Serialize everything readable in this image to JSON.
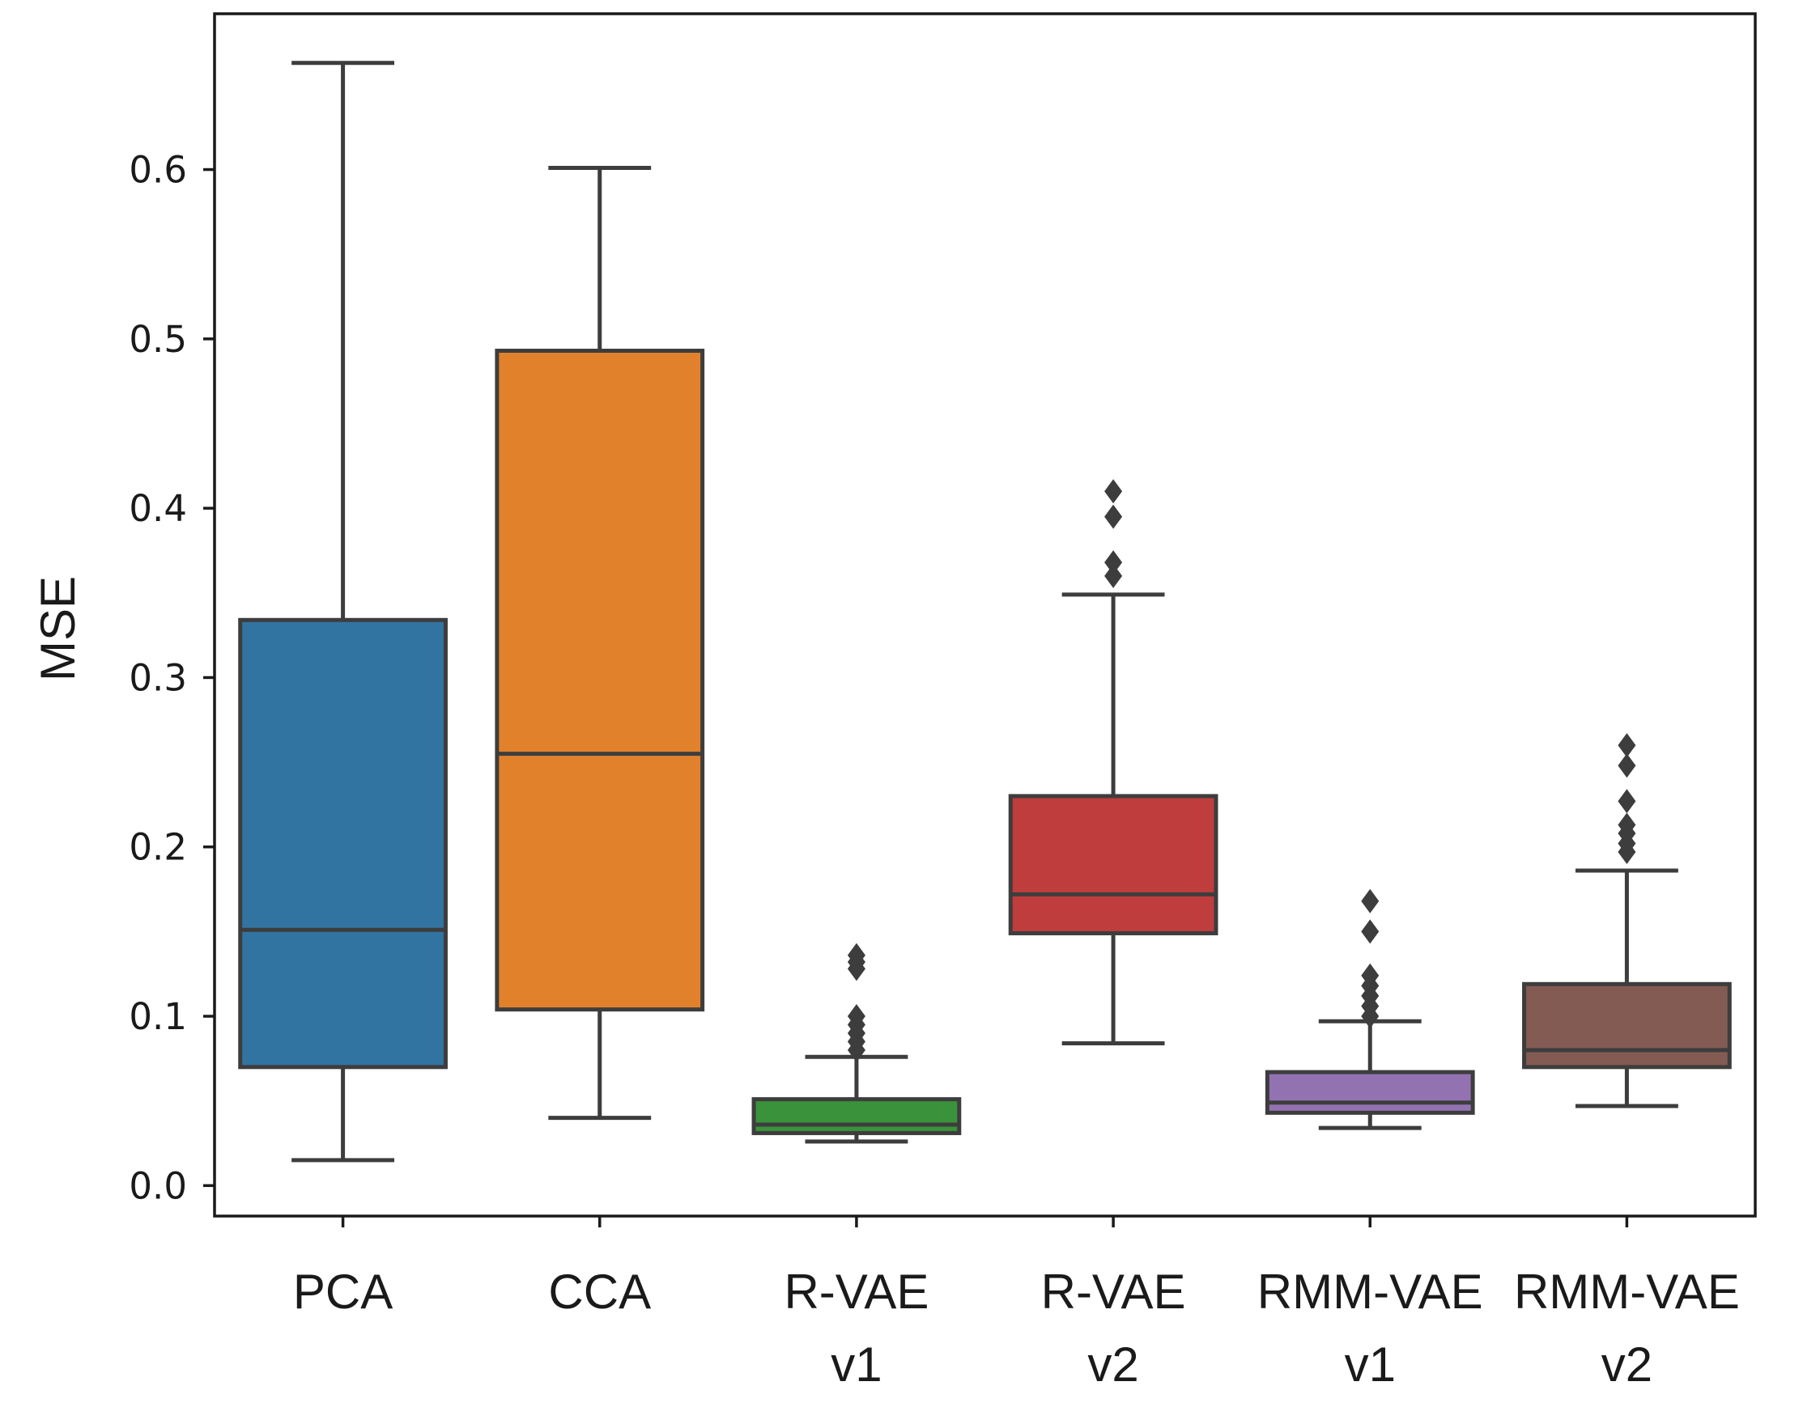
{
  "chart_data": {
    "type": "box",
    "ylabel": "MSE",
    "xlabel": "",
    "ylim": [
      -0.018,
      0.692
    ],
    "yticks": [
      "0.0",
      "0.1",
      "0.2",
      "0.3",
      "0.4",
      "0.5",
      "0.6"
    ],
    "grid": false,
    "categories": [
      {
        "lines": [
          "PCA"
        ],
        "color": "#3274a1",
        "whisker_low": 0.015,
        "q1": 0.07,
        "median": 0.151,
        "q3": 0.334,
        "whisker_high": 0.663,
        "outliers": []
      },
      {
        "lines": [
          "CCA"
        ],
        "color": "#e1812c",
        "whisker_low": 0.04,
        "q1": 0.104,
        "median": 0.255,
        "q3": 0.493,
        "whisker_high": 0.601,
        "outliers": []
      },
      {
        "lines": [
          "R-VAE",
          "v1"
        ],
        "color": "#3a923a",
        "whisker_low": 0.026,
        "q1": 0.031,
        "median": 0.036,
        "q3": 0.051,
        "whisker_high": 0.076,
        "outliers": [
          0.08,
          0.085,
          0.09,
          0.095,
          0.1,
          0.128,
          0.132,
          0.136
        ]
      },
      {
        "lines": [
          "R-VAE",
          "v2"
        ],
        "color": "#c03d3e",
        "whisker_low": 0.084,
        "q1": 0.149,
        "median": 0.172,
        "q3": 0.23,
        "whisker_high": 0.349,
        "outliers": [
          0.36,
          0.368,
          0.395,
          0.41
        ]
      },
      {
        "lines": [
          "RMM-VAE",
          "v1"
        ],
        "color": "#9372b2",
        "whisker_low": 0.034,
        "q1": 0.043,
        "median": 0.049,
        "q3": 0.067,
        "whisker_high": 0.097,
        "outliers": [
          0.1,
          0.106,
          0.112,
          0.118,
          0.124,
          0.15,
          0.168
        ]
      },
      {
        "lines": [
          "RMM-VAE",
          "v2"
        ],
        "color": "#845b53",
        "whisker_low": 0.047,
        "q1": 0.07,
        "median": 0.08,
        "q3": 0.119,
        "whisker_high": 0.186,
        "outliers": [
          0.197,
          0.202,
          0.208,
          0.213,
          0.227,
          0.248,
          0.26
        ]
      }
    ]
  }
}
